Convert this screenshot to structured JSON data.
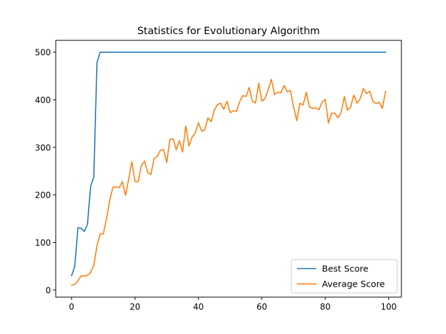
{
  "chart_data": {
    "type": "line",
    "title": "Statistics for Evolutionary Algorithm",
    "xlabel": "",
    "ylabel": "",
    "xlim": [
      -5,
      104
    ],
    "ylim": [
      -15,
      525
    ],
    "xticks": [
      0,
      20,
      40,
      60,
      80,
      100
    ],
    "yticks": [
      0,
      100,
      200,
      300,
      400,
      500
    ],
    "grid": false,
    "legend_position": "bottom-right",
    "x": [
      0,
      1,
      2,
      3,
      4,
      5,
      6,
      7,
      8,
      9,
      10,
      11,
      12,
      13,
      14,
      15,
      16,
      17,
      18,
      19,
      20,
      21,
      22,
      23,
      24,
      25,
      26,
      27,
      28,
      29,
      30,
      31,
      32,
      33,
      34,
      35,
      36,
      37,
      38,
      39,
      40,
      41,
      42,
      43,
      44,
      45,
      46,
      47,
      48,
      49,
      50,
      51,
      52,
      53,
      54,
      55,
      56,
      57,
      58,
      59,
      60,
      61,
      62,
      63,
      64,
      65,
      66,
      67,
      68,
      69,
      70,
      71,
      72,
      73,
      74,
      75,
      76,
      77,
      78,
      79,
      80,
      81,
      82,
      83,
      84,
      85,
      86,
      87,
      88,
      89,
      90,
      91,
      92,
      93,
      94,
      95,
      96,
      97,
      98,
      99
    ],
    "series": [
      {
        "name": "Best Score",
        "color": "#1f77b4",
        "values": [
          30,
          50,
          131,
          130,
          123,
          138,
          218,
          238,
          478,
          500,
          500,
          500,
          500,
          500,
          500,
          500,
          500,
          500,
          500,
          500,
          500,
          500,
          500,
          500,
          500,
          500,
          500,
          500,
          500,
          500,
          500,
          500,
          500,
          500,
          500,
          500,
          500,
          500,
          500,
          500,
          500,
          500,
          500,
          500,
          500,
          500,
          500,
          500,
          500,
          500,
          500,
          500,
          500,
          500,
          500,
          500,
          500,
          500,
          500,
          500,
          500,
          500,
          500,
          500,
          500,
          500,
          500,
          500,
          500,
          500,
          500,
          500,
          500,
          500,
          500,
          500,
          500,
          500,
          500,
          500,
          500,
          500,
          500,
          500,
          500,
          500,
          500,
          500,
          500,
          500,
          500,
          500,
          500,
          500,
          500,
          500,
          500,
          500,
          500,
          500
        ]
      },
      {
        "name": "Average Score",
        "color": "#ff7f0e",
        "values": [
          10,
          12,
          19,
          30,
          29,
          31,
          37,
          52,
          93,
          118,
          118,
          150,
          188,
          216,
          217,
          215,
          228,
          199,
          233,
          270,
          228,
          228,
          262,
          271,
          247,
          243,
          276,
          281,
          294,
          295,
          268,
          317,
          318,
          295,
          314,
          290,
          345,
          303,
          322,
          330,
          352,
          334,
          337,
          362,
          354,
          378,
          390,
          393,
          380,
          397,
          373,
          377,
          376,
          396,
          409,
          407,
          426,
          397,
          393,
          435,
          397,
          403,
          421,
          443,
          411,
          416,
          415,
          430,
          417,
          420,
          385,
          356,
          393,
          389,
          416,
          385,
          382,
          383,
          379,
          395,
          401,
          351,
          372,
          372,
          362,
          373,
          407,
          378,
          385,
          410,
          393,
          402,
          424,
          413,
          418,
          397,
          392,
          395,
          382,
          418
        ]
      }
    ]
  }
}
